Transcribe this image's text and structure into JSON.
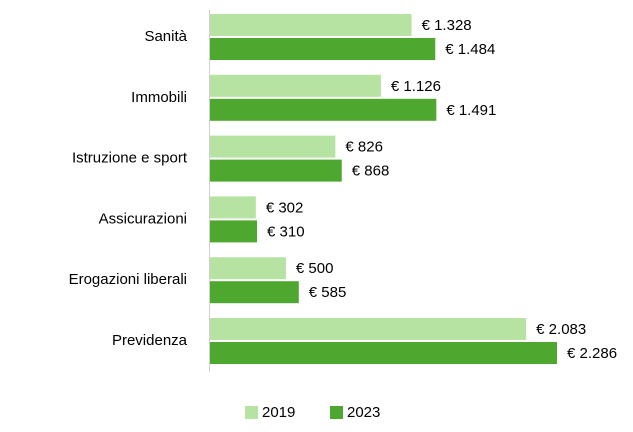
{
  "chart_data": {
    "type": "hbar",
    "categories": [
      "Sanità",
      "Immobili",
      "Istruzione e sport",
      "Assicurazioni",
      "Erogazioni liberali",
      "Previdenza"
    ],
    "series": [
      {
        "name": "2019",
        "color": "#b6e3a2",
        "values": [
          1328,
          1126,
          826,
          302,
          500,
          2083
        ],
        "value_labels": [
          "€ 1.328",
          "€ 1.126",
          "€ 826",
          "€ 302",
          "€ 500",
          "€ 2.083"
        ]
      },
      {
        "name": "2023",
        "color": "#4ea72e",
        "values": [
          1484,
          1491,
          868,
          310,
          585,
          2286
        ],
        "value_labels": [
          "€ 1.484",
          "€ 1.491",
          "€ 868",
          "€ 310",
          "€ 585",
          "€ 2.286"
        ]
      }
    ],
    "legend": "bottom"
  }
}
